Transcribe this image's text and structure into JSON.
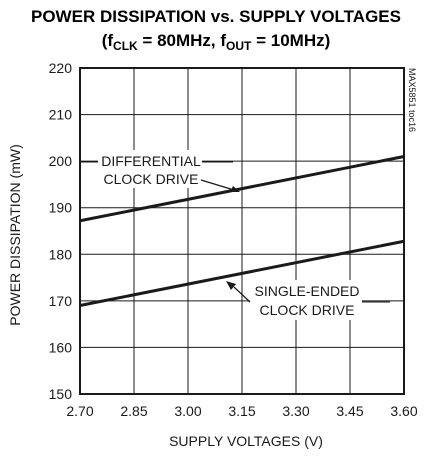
{
  "chart_data": {
    "type": "line",
    "title_line1": "POWER DISSIPATION vs. SUPPLY VOLTAGES",
    "title_line2": {
      "open": "(f",
      "clk_sub": "CLK",
      "mid": " = 80MHz, f",
      "out_sub": "OUT",
      "close": " = 10MHz)"
    },
    "xlabel": "SUPPLY VOLTAGES (V)",
    "ylabel": "POWER DISSIPATION (mW)",
    "xlim": [
      2.7,
      3.6
    ],
    "ylim": [
      150,
      220
    ],
    "x_ticks": [
      "2.70",
      "2.85",
      "3.00",
      "3.15",
      "3.30",
      "3.45",
      "3.60"
    ],
    "y_ticks": [
      "150",
      "160",
      "170",
      "180",
      "190",
      "200",
      "210",
      "220"
    ],
    "grid": true,
    "code_label": "MAX5851 toc16",
    "series": [
      {
        "name": "DIFFERENTIAL CLOCK DRIVE",
        "x": [
          2.7,
          3.6
        ],
        "y": [
          187.2,
          201.0
        ]
      },
      {
        "name": "SINGLE-ENDED CLOCK DRIVE",
        "x": [
          2.7,
          3.6
        ],
        "y": [
          169.0,
          182.8
        ]
      }
    ],
    "annotations": [
      {
        "line1": "DIFFERENTIAL",
        "line2": "CLOCK DRIVE"
      },
      {
        "line1": "SINGLE-ENDED",
        "line2": "CLOCK DRIVE"
      }
    ]
  }
}
